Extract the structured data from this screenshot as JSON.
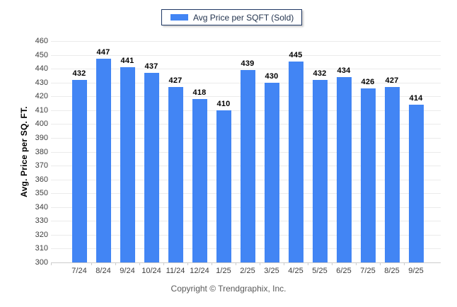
{
  "legend": {
    "label": "Avg Price per SQFT (Sold)"
  },
  "footer": {
    "copyright": "Copyright © Trendgraphix, Inc."
  },
  "palette": {
    "bar": "#4285F4",
    "legend_border": "#1F3864",
    "grid": "#EBEBEB",
    "axis_line": "#CCCCCC",
    "tick_label": "#3D3D3D",
    "value_label": "#000000",
    "copyright_text": "#595959"
  },
  "chart_data": {
    "type": "bar",
    "title": "Avg Price per SQFT (Sold)",
    "categories": [
      "7/24",
      "8/24",
      "9/24",
      "10/24",
      "11/24",
      "12/24",
      "1/25",
      "2/25",
      "3/25",
      "4/25",
      "5/25",
      "6/25",
      "7/25",
      "8/25",
      "9/25"
    ],
    "values": [
      432,
      447,
      441,
      437,
      427,
      418,
      410,
      439,
      430,
      445,
      432,
      434,
      426,
      427,
      414
    ],
    "xlabel": "",
    "ylabel": "Avg. Price per SQ. FT.",
    "ylim": [
      300,
      460
    ],
    "ytick_step": 10,
    "grid": true,
    "legend_position": "top-center",
    "bar_color": "#4285F4"
  }
}
